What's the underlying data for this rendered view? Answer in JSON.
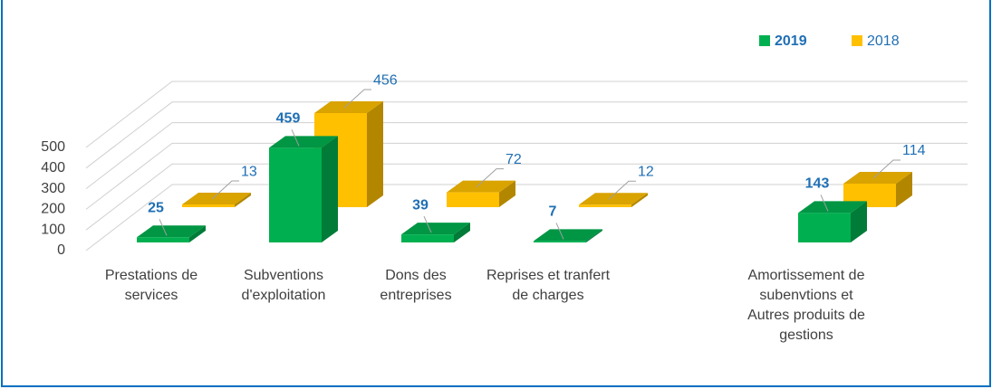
{
  "chart_data": {
    "type": "bar3d",
    "categories": [
      "Prestations de services",
      "Subventions d'exploitation",
      "Dons des entreprises",
      "Reprises et tranfert de charges",
      null,
      "Amortissement de subenvtions et Autres produits de gestions"
    ],
    "series": [
      {
        "name": "2019",
        "color": "#00b050",
        "values": [
          25,
          459,
          39,
          7,
          null,
          143
        ]
      },
      {
        "name": "2018",
        "color": "#ffc000",
        "values": [
          13,
          456,
          72,
          12,
          null,
          114
        ]
      }
    ],
    "ylim": [
      0,
      500
    ],
    "yticks": [
      0,
      100,
      200,
      300,
      400,
      500
    ],
    "grid": true,
    "legend": "top-right"
  }
}
